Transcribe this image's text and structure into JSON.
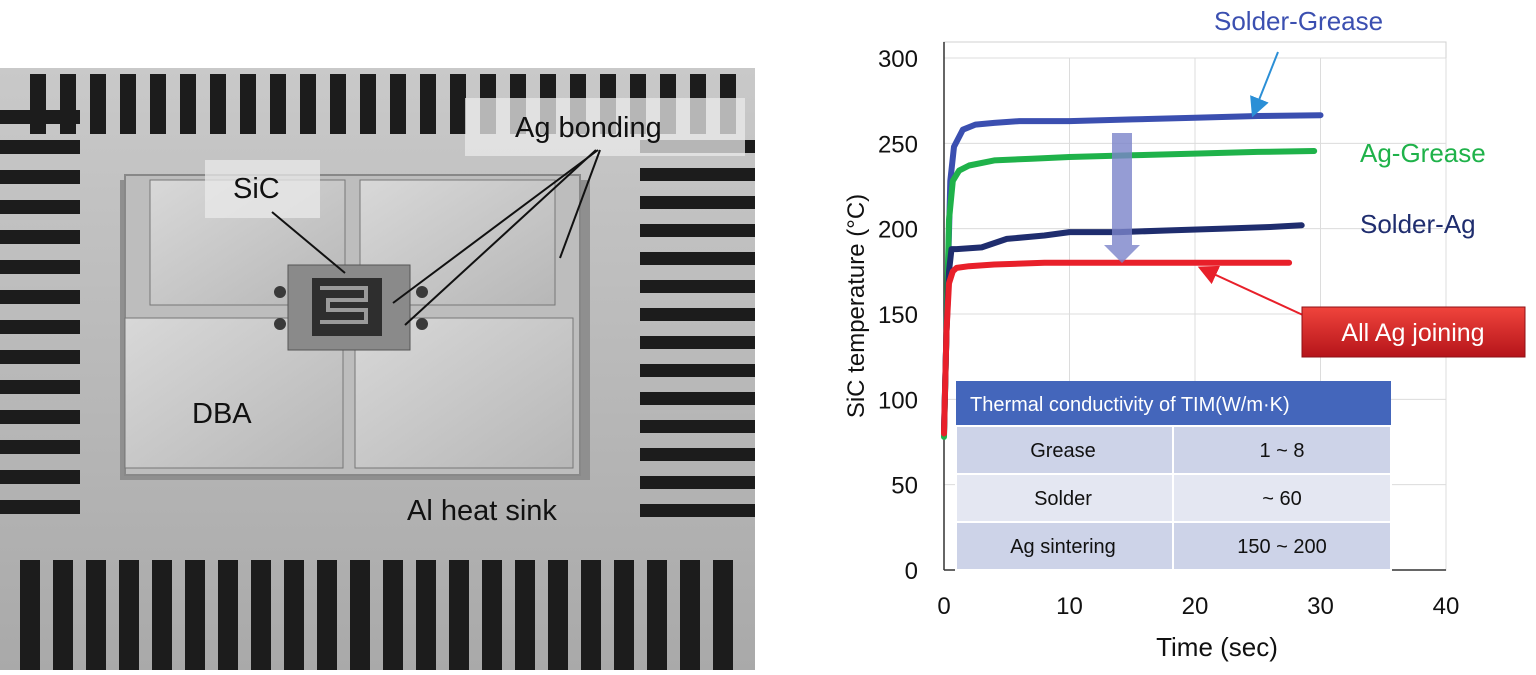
{
  "photo": {
    "labels": {
      "ag_bonding": "Ag bonding",
      "sic": "SiC",
      "dba": "DBA",
      "heat_sink": "Al heat sink"
    }
  },
  "chart_data": {
    "type": "line",
    "title": "",
    "xlabel": "Time (sec)",
    "ylabel": "SiC temperature (°C)",
    "xlim": [
      0,
      40
    ],
    "ylim": [
      0,
      300
    ],
    "xticks": [
      0,
      10,
      20,
      30,
      40
    ],
    "yticks": [
      0,
      50,
      100,
      150,
      200,
      250,
      300
    ],
    "grid": true,
    "series": [
      {
        "name": "Solder-Grease",
        "color": "#3b4fb0",
        "points": [
          [
            0,
            80
          ],
          [
            0.2,
            140
          ],
          [
            0.5,
            228
          ],
          [
            0.8,
            248
          ],
          [
            1.5,
            258
          ],
          [
            2.5,
            261
          ],
          [
            4,
            262
          ],
          [
            6,
            263
          ],
          [
            10,
            263
          ],
          [
            15,
            264
          ],
          [
            20,
            265
          ],
          [
            25,
            266
          ],
          [
            30,
            266.5
          ]
        ]
      },
      {
        "name": "Ag-Grease",
        "color": "#1fb24a",
        "points": [
          [
            0,
            78
          ],
          [
            0.2,
            140
          ],
          [
            0.4,
            205
          ],
          [
            0.7,
            228
          ],
          [
            1.2,
            234
          ],
          [
            2,
            237
          ],
          [
            4,
            240
          ],
          [
            7,
            241
          ],
          [
            10,
            242
          ],
          [
            15,
            243
          ],
          [
            20,
            244
          ],
          [
            25,
            245
          ],
          [
            29.5,
            245.5
          ]
        ]
      },
      {
        "name": "Solder-Ag",
        "color": "#1f2d6e",
        "points": [
          [
            0,
            82
          ],
          [
            0.2,
            140
          ],
          [
            0.4,
            175
          ],
          [
            0.6,
            188
          ],
          [
            1,
            188
          ],
          [
            3,
            189
          ],
          [
            5,
            194
          ],
          [
            8,
            196
          ],
          [
            10,
            198
          ],
          [
            14,
            198
          ],
          [
            18,
            199
          ],
          [
            22,
            200
          ],
          [
            26,
            201
          ],
          [
            28.5,
            202
          ]
        ]
      },
      {
        "name": "All Ag joining",
        "color": "#e8202a",
        "points": [
          [
            0,
            80
          ],
          [
            0.2,
            140
          ],
          [
            0.4,
            168
          ],
          [
            0.7,
            175
          ],
          [
            1,
            177
          ],
          [
            2,
            178
          ],
          [
            4,
            179
          ],
          [
            8,
            180
          ],
          [
            12,
            180
          ],
          [
            16,
            180
          ],
          [
            20,
            180
          ],
          [
            24,
            180
          ],
          [
            27.5,
            180
          ]
        ]
      }
    ],
    "annotations": {
      "solder_grease_label": "Solder-Grease",
      "ag_grease_label": "Ag-Grease",
      "solder_ag_label": "Solder-Ag",
      "all_ag_label": "All Ag joining"
    },
    "table": {
      "header": "Thermal conductivity of TIM(W/m·K)",
      "rows": [
        {
          "material": "Grease",
          "value": "1 ~ 8"
        },
        {
          "material": "Solder",
          "value": "~ 60"
        },
        {
          "material": "Ag sintering",
          "value": "150 ~ 200"
        }
      ]
    }
  }
}
